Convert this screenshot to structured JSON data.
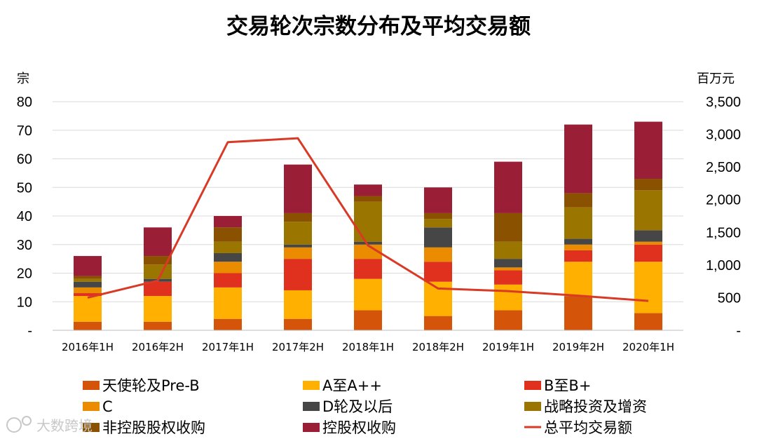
{
  "chart_data": {
    "type": "bar",
    "stacked": true,
    "title": "交易轮次宗数分布及平均交易额",
    "ylabel_left": "宗",
    "ylabel_right": "百万元",
    "categories": [
      "2016年1H",
      "2016年2H",
      "2017年1H",
      "2017年2H",
      "2018年1H",
      "2018年2H",
      "2019年1H",
      "2019年2H",
      "2020年1H"
    ],
    "ylim_left": [
      0,
      80
    ],
    "yticks_left": [
      "-",
      "10",
      "20",
      "30",
      "40",
      "50",
      "60",
      "70",
      "80"
    ],
    "ylim_right": [
      0,
      3500
    ],
    "yticks_right": [
      "-",
      "500",
      "1,000",
      "1,500",
      "2,000",
      "2,500",
      "3,000",
      "3,500"
    ],
    "series": [
      {
        "name": "天使轮及Pre-B",
        "color": "#D4540A",
        "values": [
          3,
          3,
          4,
          4,
          7,
          5,
          7,
          12,
          6
        ]
      },
      {
        "name": "A至A++",
        "color": "#FFB000",
        "values": [
          9,
          9,
          11,
          10,
          11,
          12,
          9,
          12,
          18
        ]
      },
      {
        "name": "B至B+",
        "color": "#E0301E",
        "values": [
          1,
          5,
          5,
          11,
          7,
          7,
          5,
          4,
          6
        ]
      },
      {
        "name": "C",
        "color": "#EB8C00",
        "values": [
          2,
          0,
          4,
          4,
          5,
          5,
          1,
          2,
          1
        ]
      },
      {
        "name": "D轮及以后",
        "color": "#464646",
        "values": [
          2,
          1,
          3,
          1,
          1,
          7,
          3,
          2,
          4
        ]
      },
      {
        "name": "战略投资及增资",
        "color": "#9A7500",
        "values": [
          1,
          5,
          4,
          8,
          14,
          3,
          6,
          11,
          14
        ]
      },
      {
        "name": "非控股股权收购",
        "color": "#8A5200",
        "values": [
          1,
          3,
          5,
          3,
          2,
          2,
          10,
          5,
          4
        ]
      },
      {
        "name": "控股权收购",
        "color": "#991E36",
        "values": [
          7,
          10,
          4,
          17,
          4,
          9,
          18,
          24,
          20
        ]
      }
    ],
    "line_series": {
      "name": "总平均交易额",
      "color": "#D93A26",
      "axis": "right",
      "values": [
        500,
        760,
        2880,
        2940,
        1300,
        640,
        600,
        530,
        450
      ]
    }
  },
  "watermark": "大数跨境"
}
